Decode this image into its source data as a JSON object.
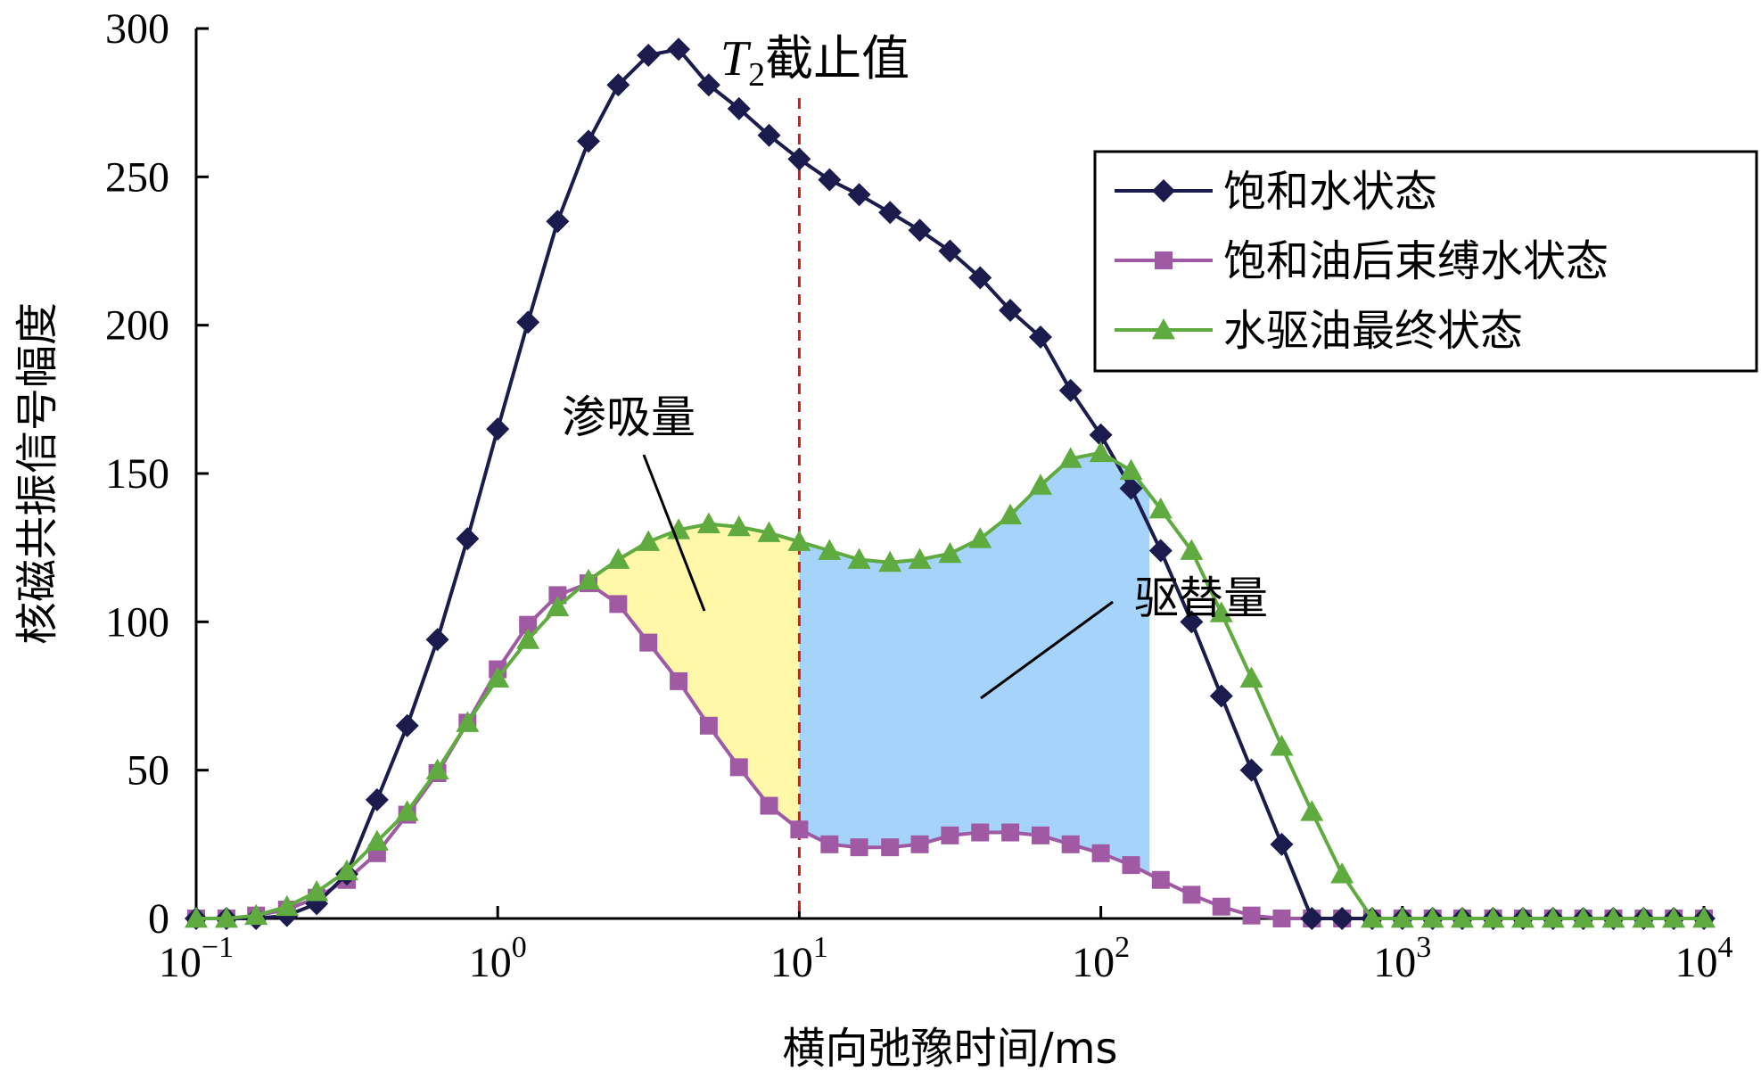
{
  "chart_data": {
    "type": "line",
    "title": "",
    "xlabel": "横向弛豫时间/ms",
    "ylabel": "核磁共振信号幅度",
    "x_scale": "log",
    "xlim": [
      0.1,
      10000
    ],
    "ylim": [
      0,
      300
    ],
    "x_ticks": [
      {
        "value": 0.1,
        "base": "10",
        "exp": "−1"
      },
      {
        "value": 1,
        "base": "10",
        "exp": "0"
      },
      {
        "value": 10,
        "base": "10",
        "exp": "1"
      },
      {
        "value": 100,
        "base": "10",
        "exp": "2"
      },
      {
        "value": 1000,
        "base": "10",
        "exp": "3"
      },
      {
        "value": 10000,
        "base": "10",
        "exp": "4"
      }
    ],
    "y_ticks": [
      "0",
      "50",
      "100",
      "150",
      "200",
      "250",
      "300"
    ],
    "grid": false,
    "legend_position": "top-right",
    "cutoff": {
      "x": 10,
      "label_t": "T",
      "label_sub": "2",
      "label_rest": "截止值",
      "color": "#d7191c"
    },
    "annotations": [
      {
        "text": "渗吸量",
        "fill_color": "#fff8a8"
      },
      {
        "text": "驱替量",
        "fill_color": "#a5d3fa"
      }
    ],
    "series": [
      {
        "name": "饱和水状态",
        "color": "#1b1b4d",
        "marker": "diamond",
        "x": [
          0.1,
          0.126,
          0.158,
          0.2,
          0.251,
          0.316,
          0.398,
          0.501,
          0.631,
          0.794,
          1.0,
          1.26,
          1.58,
          2.0,
          2.51,
          3.16,
          3.98,
          5.01,
          6.31,
          7.94,
          10.0,
          12.6,
          15.8,
          20.0,
          25.1,
          31.6,
          39.8,
          50.1,
          63.1,
          79.4,
          100,
          126,
          158,
          200,
          251,
          316,
          398,
          501,
          631,
          794,
          1000,
          1260,
          1580,
          2000,
          2510,
          3160,
          3980,
          5010,
          6310,
          7940,
          10000
        ],
        "values": [
          0,
          0,
          0,
          1,
          5,
          15,
          40,
          65,
          94,
          128,
          165,
          201,
          235,
          262,
          281,
          291,
          293,
          281,
          273,
          264,
          256,
          249,
          244,
          238,
          232,
          225,
          216,
          205,
          196,
          178,
          163,
          145,
          124,
          100,
          75,
          50,
          25,
          0,
          0,
          0,
          0,
          0,
          0,
          0,
          0,
          0,
          0,
          0,
          0,
          0,
          0
        ]
      },
      {
        "name": "饱和油后束缚水状态",
        "color": "#a05aa4",
        "marker": "square",
        "x": [
          0.1,
          0.126,
          0.158,
          0.2,
          0.251,
          0.316,
          0.398,
          0.501,
          0.631,
          0.794,
          1.0,
          1.26,
          1.58,
          2.0,
          2.51,
          3.16,
          3.98,
          5.01,
          6.31,
          7.94,
          10.0,
          12.6,
          15.8,
          20.0,
          25.1,
          31.6,
          39.8,
          50.1,
          63.1,
          79.4,
          100,
          126,
          158,
          200,
          251,
          316,
          398,
          501,
          631,
          794,
          1000,
          1260,
          1580,
          2000,
          2510,
          3160,
          3980,
          5010,
          6310,
          7940,
          10000
        ],
        "values": [
          0,
          0,
          1,
          3,
          7,
          13,
          22,
          35,
          49,
          66,
          84,
          99,
          109,
          113,
          106,
          93,
          80,
          65,
          51,
          38,
          30,
          25,
          24,
          24,
          25,
          28,
          29,
          29,
          28,
          25,
          22,
          18,
          13,
          8,
          4,
          1,
          0,
          0,
          0,
          0,
          0,
          0,
          0,
          0,
          0,
          0,
          0,
          0,
          0,
          0,
          0
        ]
      },
      {
        "name": "水驱油最终状态",
        "color": "#5fab3f",
        "marker": "triangle",
        "x": [
          0.1,
          0.126,
          0.158,
          0.2,
          0.251,
          0.316,
          0.398,
          0.501,
          0.631,
          0.794,
          1.0,
          1.26,
          1.58,
          2.0,
          2.51,
          3.16,
          3.98,
          5.01,
          6.31,
          7.94,
          10.0,
          12.6,
          15.8,
          20.0,
          25.1,
          31.6,
          39.8,
          50.1,
          63.1,
          79.4,
          100,
          126,
          158,
          200,
          251,
          316,
          398,
          501,
          631,
          794,
          1000,
          1260,
          1580,
          2000,
          2510,
          3160,
          3980,
          5010,
          6310,
          7940,
          10000
        ],
        "values": [
          0,
          0,
          1,
          4,
          9,
          16,
          26,
          36,
          50,
          66,
          81,
          94,
          105,
          114,
          121,
          127,
          131,
          133,
          132,
          130,
          127,
          124,
          121,
          120,
          121,
          123,
          128,
          136,
          146,
          155,
          157,
          151,
          138,
          124,
          103,
          81,
          58,
          36,
          15,
          0,
          0,
          0,
          0,
          0,
          0,
          0,
          0,
          0,
          0,
          0,
          0
        ]
      }
    ]
  }
}
